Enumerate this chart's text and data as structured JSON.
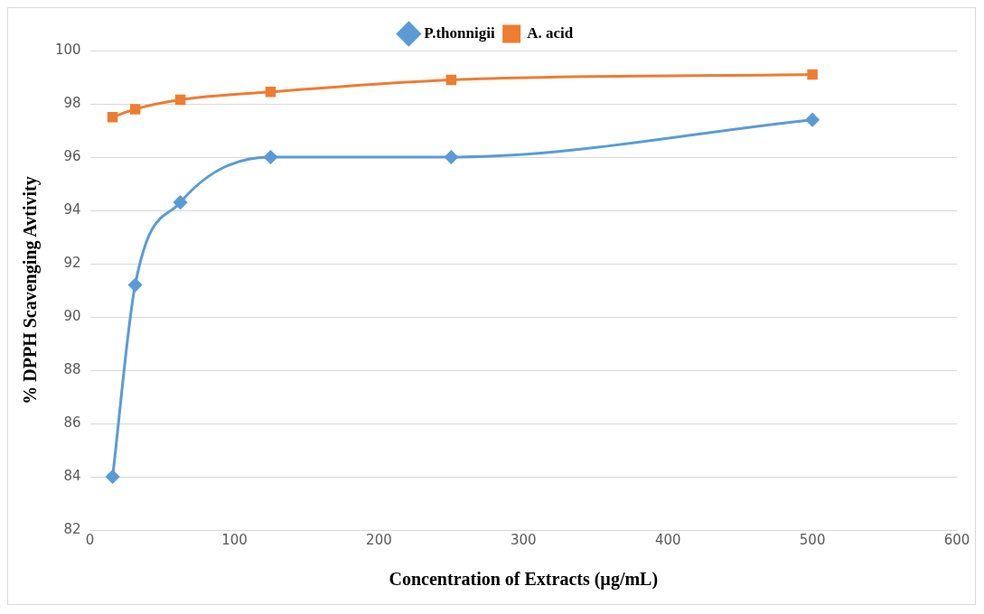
{
  "chart_data": {
    "type": "line",
    "xlabel": "Concentration of Extracts (µg/mL)",
    "ylabel": "% DPPH Scavenging Avtivity",
    "x": [
      15.625,
      31.25,
      62.5,
      125,
      250,
      500
    ],
    "series": [
      {
        "name": "P.thonnigii",
        "color": "#5b9bd5",
        "marker": "diamond",
        "values": [
          84.0,
          91.2,
          94.3,
          96.0,
          96.0,
          97.4
        ]
      },
      {
        "name": "A. acid",
        "color": "#ed7d31",
        "marker": "square",
        "values": [
          97.5,
          97.8,
          98.15,
          98.45,
          98.9,
          99.1
        ]
      }
    ],
    "xlim": [
      0,
      600
    ],
    "xticks": [
      0,
      100,
      200,
      300,
      400,
      500,
      600
    ],
    "ylim": [
      82,
      100
    ],
    "yticks": [
      82,
      84,
      86,
      88,
      90,
      92,
      94,
      96,
      98,
      100
    ],
    "grid": "y",
    "legend": "top"
  }
}
